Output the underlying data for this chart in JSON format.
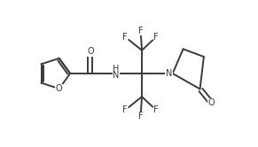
{
  "bg_color": "#ffffff",
  "line_color": "#3a3a3a",
  "line_width": 1.4,
  "font_size": 7.0,
  "figsize": [
    2.91,
    1.66
  ],
  "dpi": 100,
  "xlim": [
    0,
    10
  ],
  "ylim": [
    0,
    5.7
  ]
}
